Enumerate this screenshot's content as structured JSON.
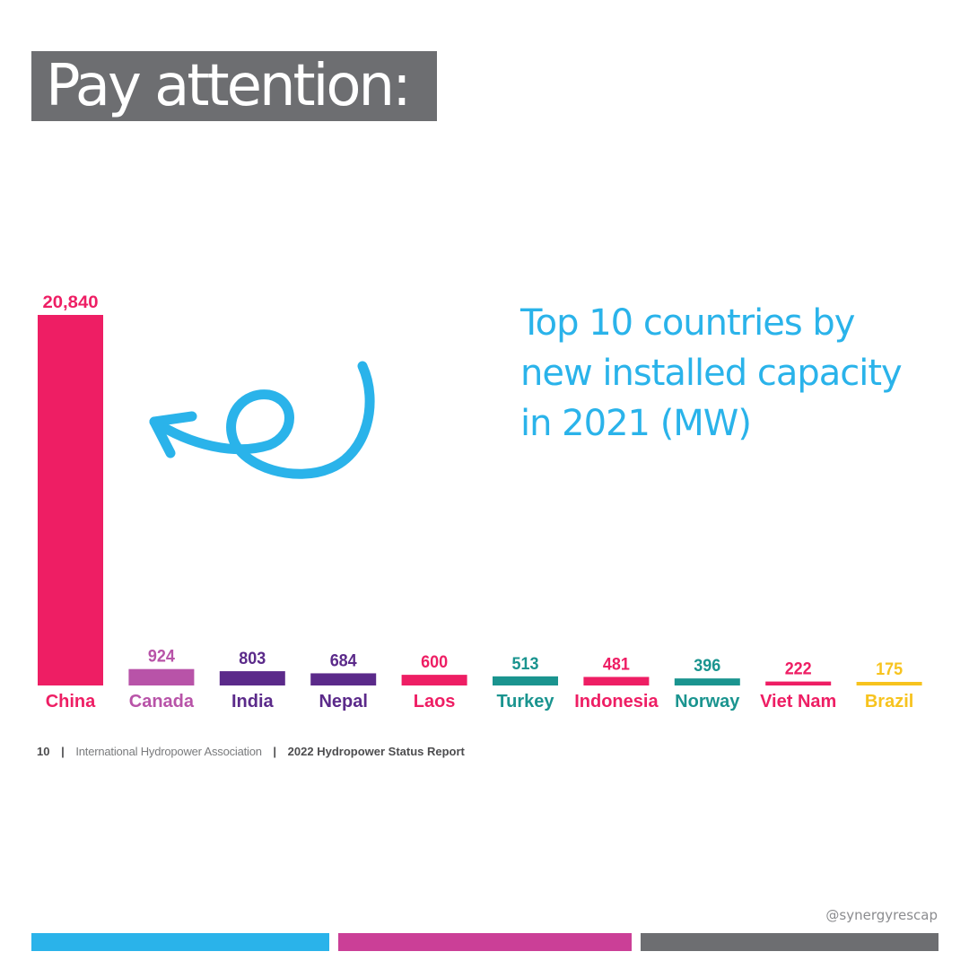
{
  "headline": "Pay attention:",
  "chart_data": {
    "type": "bar",
    "title_lines": [
      "Top 10 countries by",
      "new installed capacity",
      "in 2021 (MW)"
    ],
    "categories": [
      "China",
      "Canada",
      "India",
      "Nepal",
      "Laos",
      "Turkey",
      "Indonesia",
      "Norway",
      "Viet Nam",
      "Brazil"
    ],
    "values": [
      20840,
      924,
      803,
      684,
      600,
      513,
      481,
      396,
      222,
      175
    ],
    "value_labels": [
      "20,840",
      "924",
      "803",
      "684",
      "600",
      "513",
      "481",
      "396",
      "222",
      "175"
    ],
    "colors": [
      "#ee1e64",
      "#b853a8",
      "#5b2a8a",
      "#5b2a8a",
      "#ee1e64",
      "#1a948f",
      "#ee1e64",
      "#1a948f",
      "#ee1e64",
      "#f7c31e"
    ],
    "xlabel": "",
    "ylabel": "",
    "grid": false,
    "legend": "none"
  },
  "footer": {
    "page_number": "10",
    "separator": "|",
    "organization": "International Hydropower Association",
    "report": "2022 Hydropower Status Report"
  },
  "handle": "@synergyrescap",
  "stripe_colors": [
    "#2ab3ea",
    "#cb3f97",
    "#6d6e71"
  ],
  "accent_color": "#2ab3ea",
  "icons": {
    "annotation_arrow": "curly-arrow-icon"
  }
}
